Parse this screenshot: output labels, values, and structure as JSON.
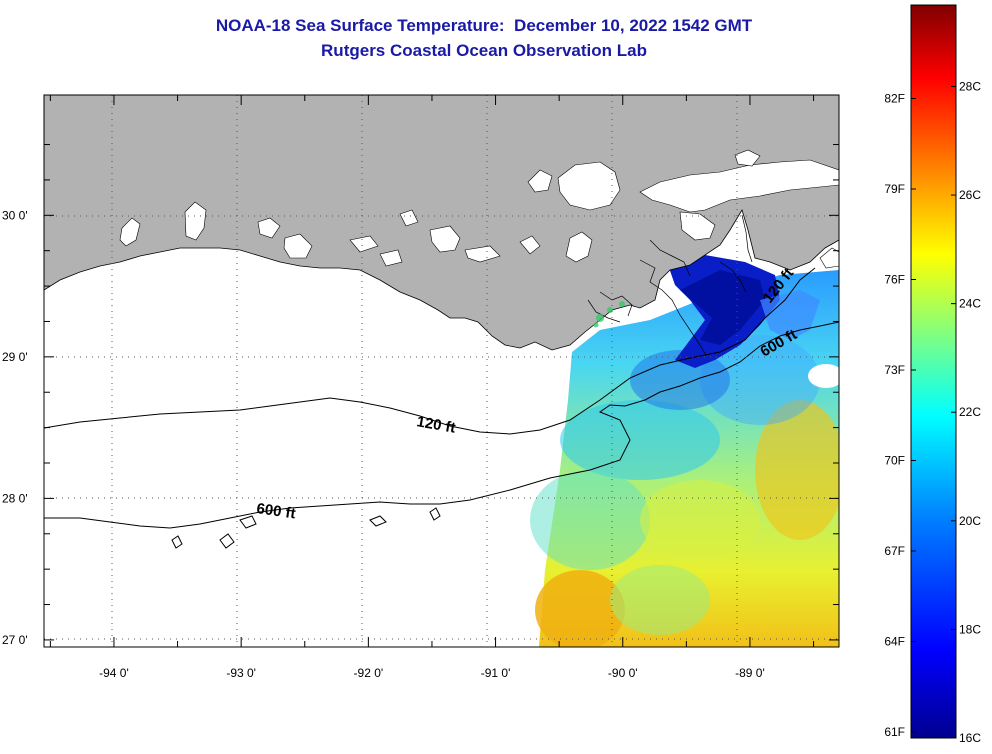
{
  "title": {
    "line1": "NOAA-18 Sea Surface Temperature:  December 10, 2022 1542 GMT",
    "line2": "Rutgers Coastal Ocean Observation Lab",
    "color": "#1a1aa6"
  },
  "map": {
    "land_color": "#b2b2b2",
    "lon_range": [
      -94.55,
      -88.3
    ],
    "lat_range": [
      26.95,
      30.85
    ],
    "lon_ticks": [
      {
        "value": -94,
        "label": "-94 0'"
      },
      {
        "value": -93,
        "label": "-93 0'"
      },
      {
        "value": -92,
        "label": "-92 0'"
      },
      {
        "value": -91,
        "label": "-91 0'"
      },
      {
        "value": -90,
        "label": "-90 0'"
      },
      {
        "value": -89,
        "label": "-89 0'"
      }
    ],
    "lat_ticks": [
      {
        "value": 27,
        "label": "27 0'"
      },
      {
        "value": 28,
        "label": "28 0'"
      },
      {
        "value": 29,
        "label": "29 0'"
      },
      {
        "value": 30,
        "label": "30 0'"
      }
    ],
    "contour_labels": [
      {
        "name": "contour-label-120ft-west",
        "text": "120 ft"
      },
      {
        "name": "contour-label-600ft-west",
        "text": "600 ft"
      },
      {
        "name": "contour-label-120ft-east",
        "text": "120 ft"
      },
      {
        "name": "contour-label-600ft-east",
        "text": "600 ft"
      }
    ]
  },
  "colorbar": {
    "range_c": [
      16,
      29.5
    ],
    "fahrenheit_labels": [
      {
        "value": 61,
        "label": "61F"
      },
      {
        "value": 64,
        "label": "64F"
      },
      {
        "value": 67,
        "label": "67F"
      },
      {
        "value": 70,
        "label": "70F"
      },
      {
        "value": 73,
        "label": "73F"
      },
      {
        "value": 76,
        "label": "76F"
      },
      {
        "value": 79,
        "label": "79F"
      },
      {
        "value": 82,
        "label": "82F"
      }
    ],
    "celsius_labels": [
      {
        "value": 16,
        "label": "16C"
      },
      {
        "value": 18,
        "label": "18C"
      },
      {
        "value": 20,
        "label": "20C"
      },
      {
        "value": 22,
        "label": "22C"
      },
      {
        "value": 24,
        "label": "24C"
      },
      {
        "value": 26,
        "label": "26C"
      },
      {
        "value": 28,
        "label": "28C"
      }
    ],
    "colors": [
      "#00008f",
      "#0000ff",
      "#0080ff",
      "#00ffff",
      "#80ff80",
      "#ffff00",
      "#ff8000",
      "#ff0000",
      "#800000"
    ]
  }
}
